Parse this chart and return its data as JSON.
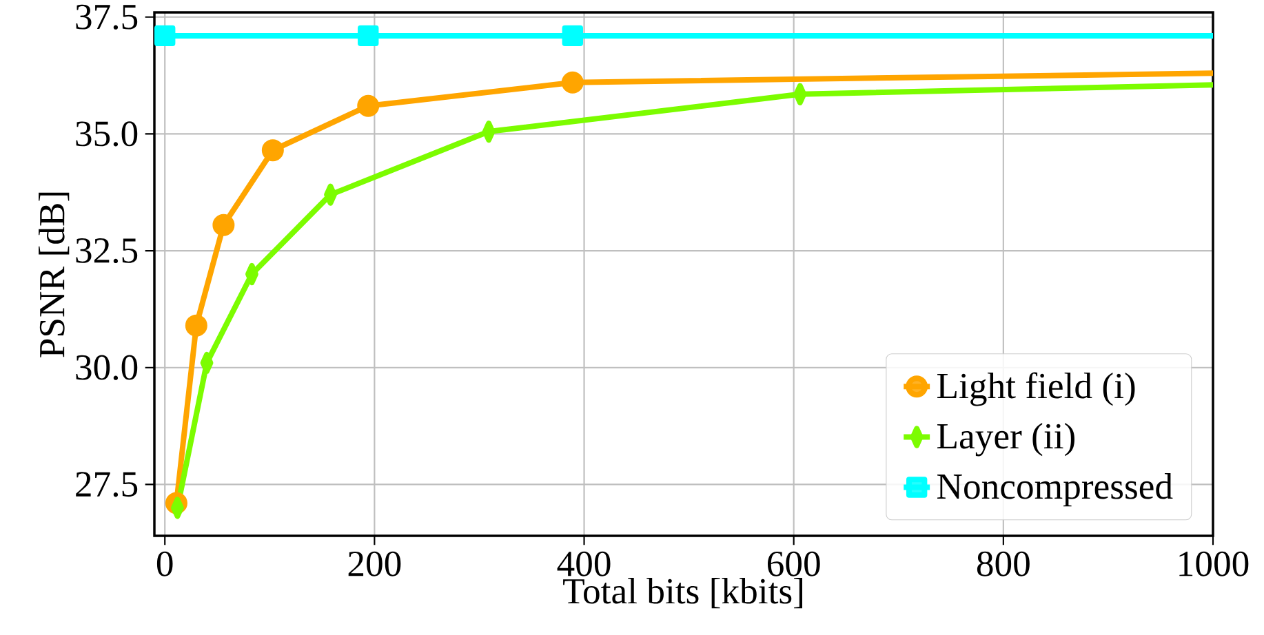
{
  "chart_data": {
    "type": "line",
    "xlabel": "Total bits [kbits]",
    "ylabel": "PSNR [dB]",
    "xlim": [
      -10,
      1000
    ],
    "ylim": [
      26.4,
      37.6
    ],
    "xticks": [
      0,
      200,
      400,
      600,
      800,
      1000
    ],
    "yticks": [
      27.5,
      {
        "value": 30,
        "label": "30.0"
      },
      32.5,
      {
        "value": 35,
        "label": "35.0"
      },
      37.5
    ],
    "grid": true,
    "legend": "bottom right",
    "line_style": "solid",
    "series": [
      {
        "name": "Light field (i)",
        "color": "#ffa500",
        "marker": "circle",
        "x": [
          11,
          30,
          56,
          103,
          194,
          389,
          1000
        ],
        "values": [
          27.1,
          30.9,
          33.05,
          34.65,
          35.6,
          36.1,
          36.3
        ]
      },
      {
        "name": "Layer (ii)",
        "color": "#7cfc00",
        "marker": "diamond",
        "x": [
          12,
          40,
          83,
          158,
          309,
          606,
          1000
        ],
        "values": [
          27.0,
          30.1,
          32.0,
          33.7,
          35.05,
          35.85,
          36.05
        ]
      },
      {
        "name": "Noncompressed",
        "color": "#00ffff",
        "marker": "square",
        "x": [
          0,
          194,
          389,
          1000
        ],
        "values": [
          37.1,
          37.1,
          37.1,
          37.1
        ]
      }
    ]
  }
}
